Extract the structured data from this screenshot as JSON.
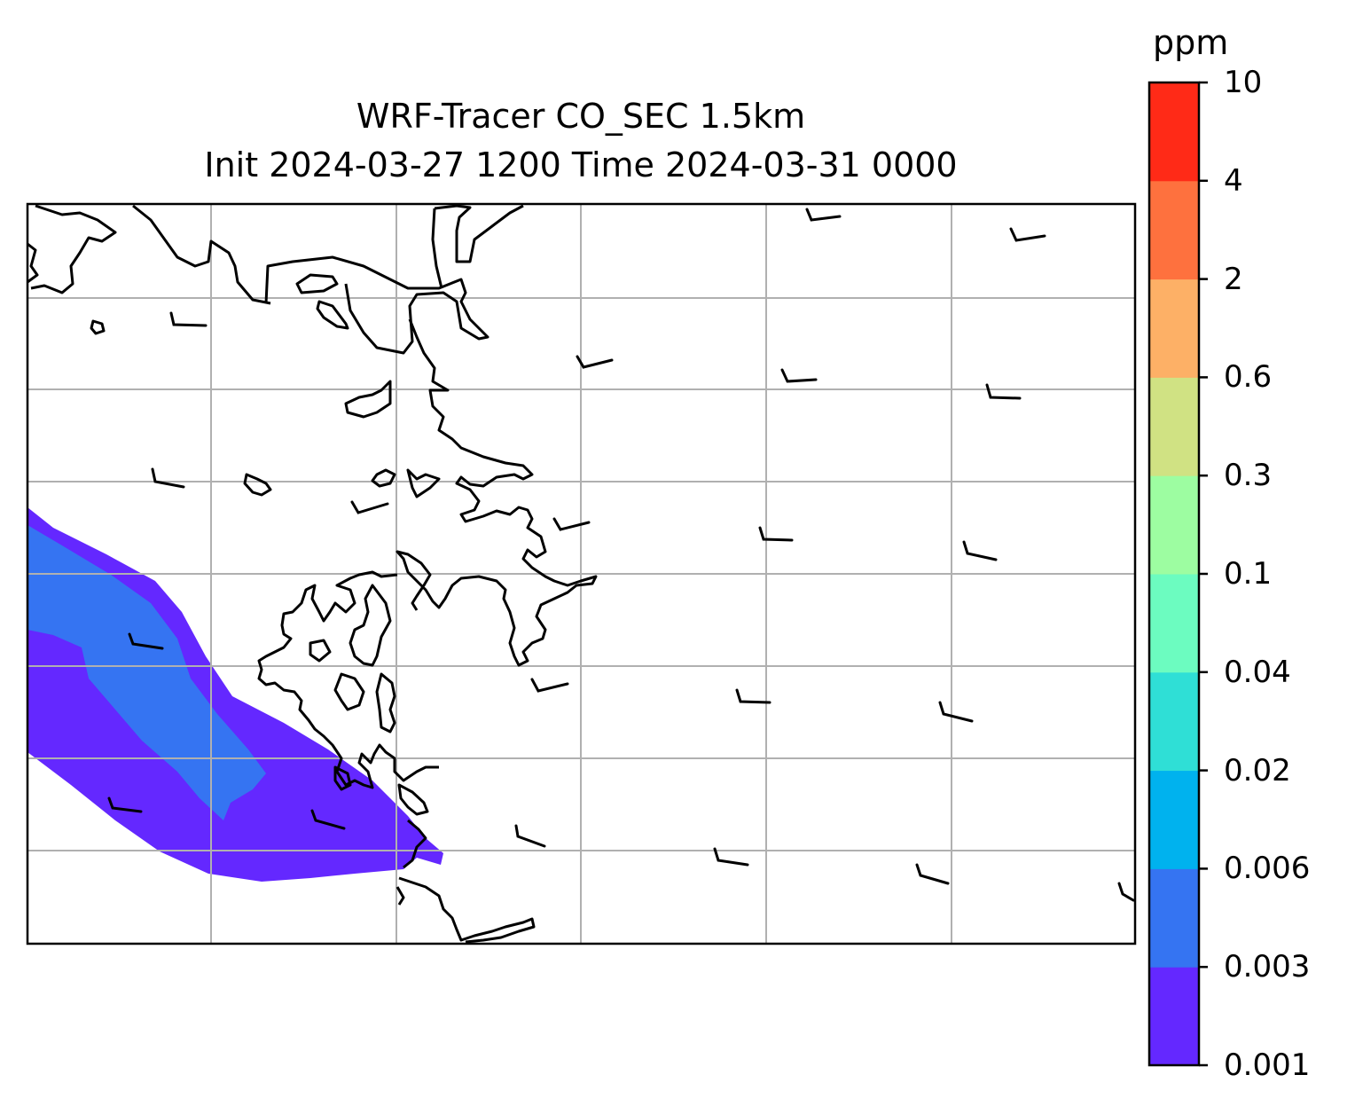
{
  "title": {
    "line1": "WRF-Tracer CO_SEC 1.5km",
    "line2": "Init 2024-03-27 1200 Time 2024-03-31 0000"
  },
  "colorbar": {
    "units": "ppm",
    "levels": [
      "0.001",
      "0.003",
      "0.006",
      "0.02",
      "0.04",
      "0.1",
      "0.3",
      "0.6",
      "2",
      "4",
      "10"
    ],
    "colors": [
      "#6428ff",
      "#3574f2",
      "#00b2ee",
      "#2fdfd6",
      "#6cfcc0",
      "#9dfda1",
      "#d0e283",
      "#fdb066",
      "#fe713e",
      "#ff2a17"
    ]
  },
  "map": {
    "coastline_color": "#000000",
    "gridline_color": "#b0b0b0",
    "plume_colors": {
      "outer": "#6428ff",
      "inner": "#3574f2"
    }
  }
}
